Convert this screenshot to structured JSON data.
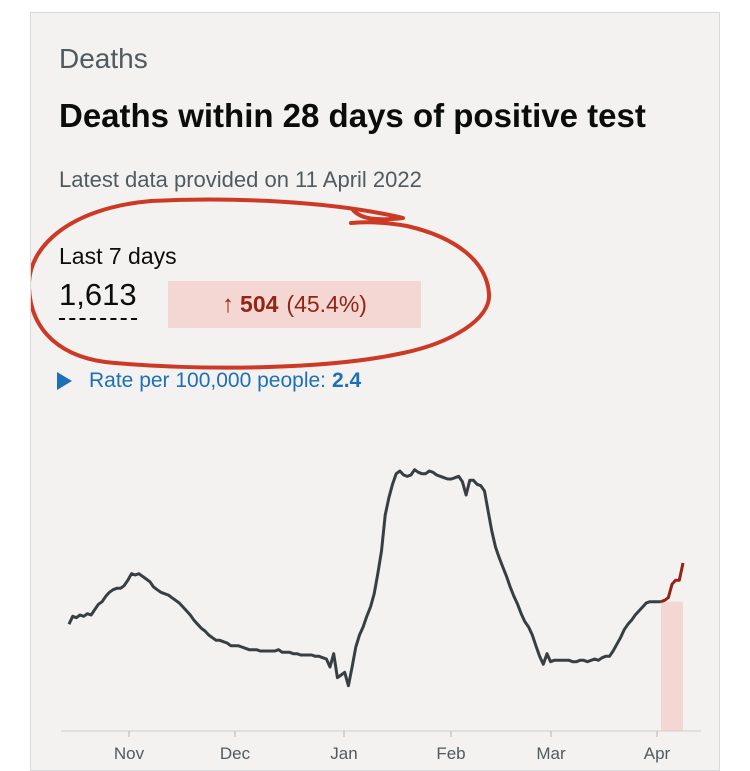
{
  "card": {
    "category": "Deaths",
    "title": "Deaths within 28 days of positive test",
    "updated": "Latest data provided on 11 April 2022"
  },
  "headline": {
    "period_label": "Last 7 days",
    "value": "1,613",
    "change_arrow": "↑",
    "change_value": "504",
    "change_percent": "(45.4%)",
    "change_color": "#942514",
    "change_bg": "#f4d7d2"
  },
  "rate": {
    "label": "Rate per 100,000 people:",
    "value": "2.4",
    "icon": "disclosure-triangle-icon",
    "color": "#1d70b8"
  },
  "annotation": {
    "description": "red hand-drawn circle around the last-7-days figures",
    "color": "#cc3a26"
  },
  "chart_data": {
    "type": "line",
    "title": "",
    "xlabel": "",
    "ylabel": "",
    "x_ticks": [
      "Nov",
      "Dec",
      "Jan",
      "Feb",
      "Mar",
      "Apr"
    ],
    "series": [
      {
        "values": [
          80,
          86,
          85,
          87,
          86,
          88,
          87,
          91,
          95,
          97,
          101,
          104,
          106,
          107,
          107,
          109,
          113,
          118,
          117,
          118,
          116,
          114,
          112,
          108,
          106,
          104,
          103,
          102,
          100,
          98,
          96,
          93,
          90,
          87,
          83,
          80,
          77,
          75,
          72,
          70,
          68,
          68,
          67,
          66,
          64,
          64,
          64,
          63,
          62,
          61,
          61,
          61,
          60,
          60,
          60,
          60,
          60,
          61,
          59,
          59,
          59,
          58,
          58,
          57,
          57,
          57,
          57,
          56,
          56,
          55,
          54,
          48,
          58,
          40,
          42,
          44,
          34,
          48,
          63,
          72,
          78,
          86,
          93,
          103,
          118,
          135,
          162,
          175,
          185,
          193,
          195,
          192,
          191,
          192,
          196,
          194,
          193,
          193,
          195,
          194,
          192,
          191,
          190,
          189,
          189,
          190,
          191,
          187,
          177,
          188,
          188,
          185,
          184,
          180,
          165,
          150,
          138,
          130,
          123,
          116,
          108,
          101,
          95,
          88,
          82,
          78,
          72,
          64,
          56,
          50,
          58,
          52,
          53,
          53,
          53,
          53,
          53,
          52,
          52,
          53,
          53,
          52,
          53,
          54,
          53,
          55,
          56,
          56,
          60,
          65,
          70,
          76,
          80,
          83,
          87,
          90,
          93,
          96,
          97,
          97,
          97,
          97,
          98,
          100,
          110,
          113,
          113,
          126
        ],
        "highlight_last_n": 7,
        "color": "#383f43",
        "highlight_color": "#942514",
        "highlight_fill": "#f4d7d2"
      }
    ],
    "grid": false
  }
}
